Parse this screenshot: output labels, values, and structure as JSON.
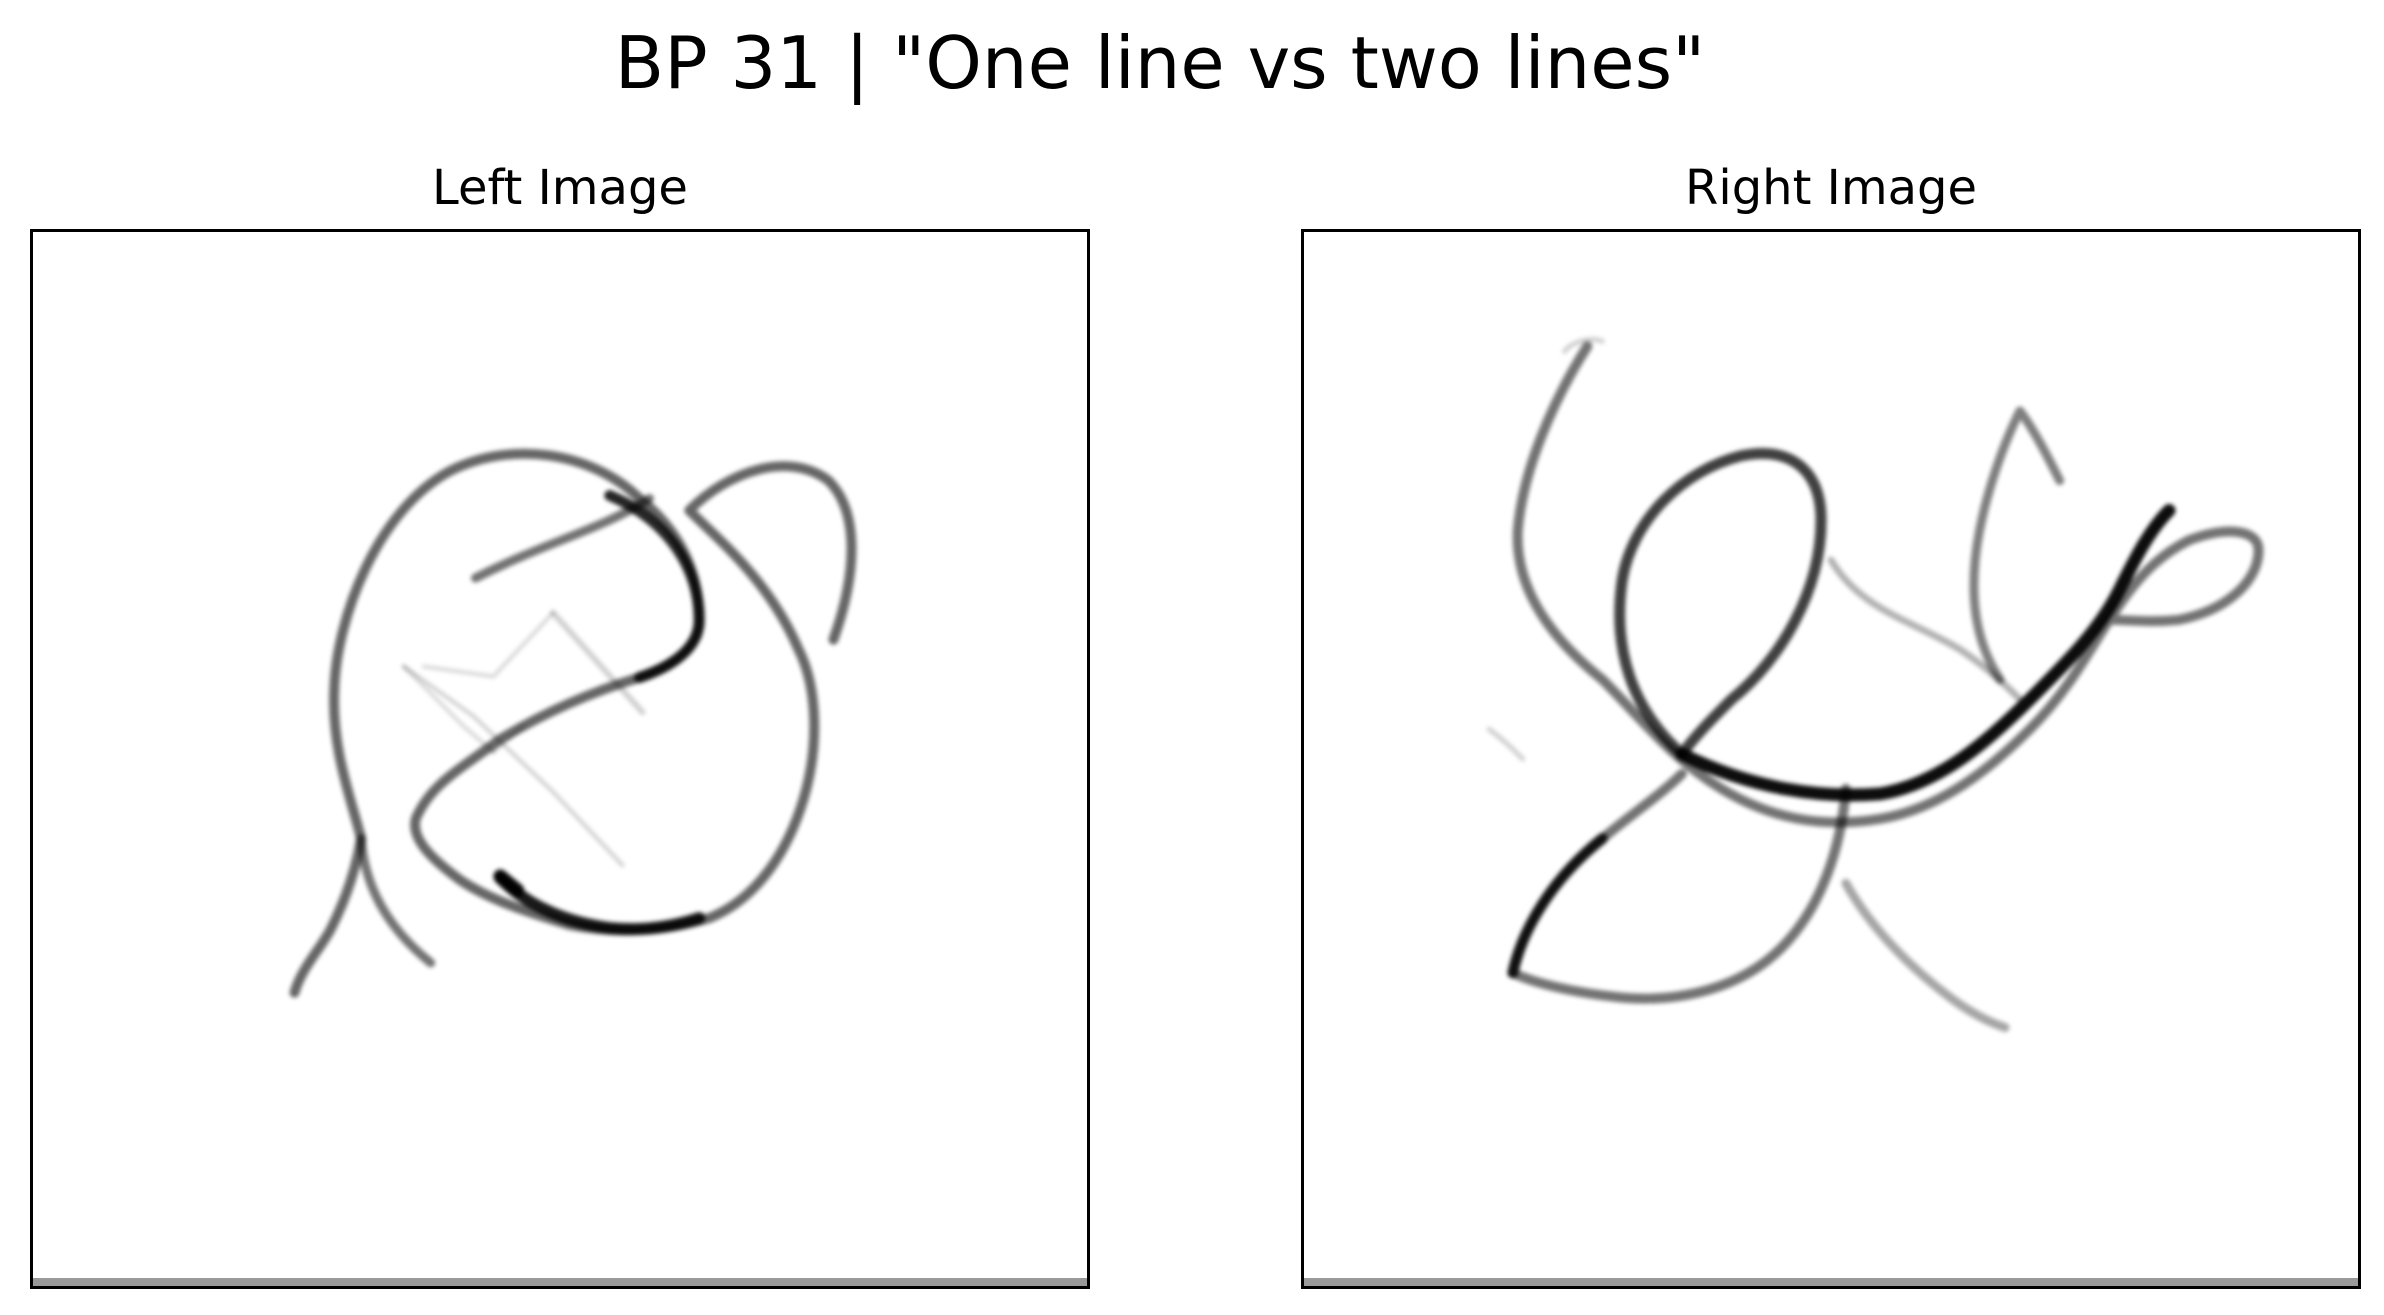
{
  "figure": {
    "title": "BP 31 | \"One line vs two lines\""
  },
  "panels": [
    {
      "id": "left",
      "title": "Left Image"
    },
    {
      "id": "right",
      "title": "Right Image"
    }
  ],
  "colors": {
    "stroke": "#000000",
    "frame": "#000000",
    "background": "#ffffff"
  }
}
